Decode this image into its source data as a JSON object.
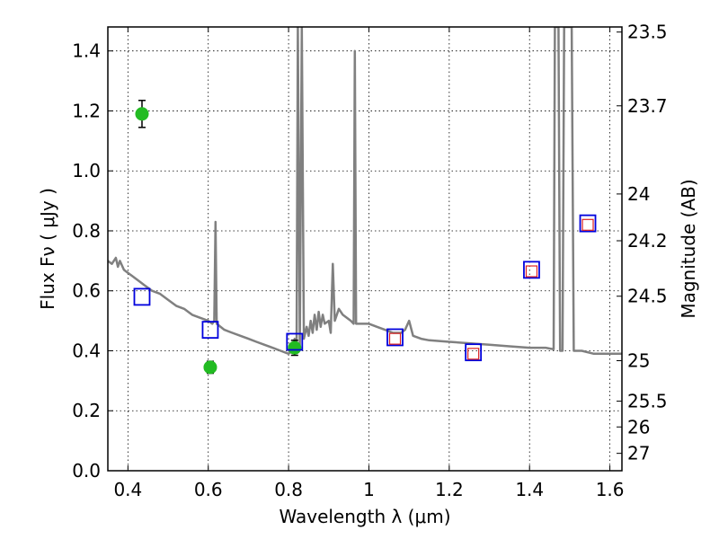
{
  "chart_data": {
    "type": "scatter",
    "xlabel": "Wavelength  λ (μm)",
    "ylabel": "Flux  Fν  ( μJy )",
    "ylabel_right": "Magnitude (AB)",
    "xlim": [
      0.35,
      1.63
    ],
    "ylim": [
      0.0,
      1.48
    ],
    "grid": true,
    "x_ticks": [
      0.4,
      0.6,
      0.8,
      1.0,
      1.2,
      1.4,
      1.6
    ],
    "x_tick_labels": [
      "0.4",
      "0.6",
      "0.8",
      "1",
      "1.2",
      "1.4",
      "1.6"
    ],
    "y_ticks": [
      0.0,
      0.2,
      0.4,
      0.6,
      0.8,
      1.0,
      1.2,
      1.4
    ],
    "y_tick_labels": [
      "0.0",
      "0.2",
      "0.4",
      "0.6",
      "0.8",
      "1.0",
      "1.2",
      "1.4"
    ],
    "right_ticks": [
      {
        "label": "23.5",
        "flux": 1.463
      },
      {
        "label": "23.7",
        "flux": 1.217
      },
      {
        "label": "24",
        "flux": 0.923
      },
      {
        "label": "24.2",
        "flux": 0.767
      },
      {
        "label": "24.5",
        "flux": 0.582
      },
      {
        "label": "25",
        "flux": 0.367
      },
      {
        "label": "25.5",
        "flux": 0.232
      },
      {
        "label": "26",
        "flux": 0.146
      },
      {
        "label": "27",
        "flux": 0.058
      }
    ],
    "series": [
      {
        "kind": "line",
        "color": "#808080",
        "points": [
          [
            0.35,
            0.7
          ],
          [
            0.36,
            0.69
          ],
          [
            0.37,
            0.71
          ],
          [
            0.375,
            0.68
          ],
          [
            0.38,
            0.7
          ],
          [
            0.39,
            0.67
          ],
          [
            0.4,
            0.66
          ],
          [
            0.41,
            0.65
          ],
          [
            0.42,
            0.64
          ],
          [
            0.43,
            0.63
          ],
          [
            0.44,
            0.62
          ],
          [
            0.45,
            0.61
          ],
          [
            0.46,
            0.6
          ],
          [
            0.48,
            0.59
          ],
          [
            0.5,
            0.57
          ],
          [
            0.52,
            0.55
          ],
          [
            0.54,
            0.54
          ],
          [
            0.55,
            0.53
          ],
          [
            0.56,
            0.52
          ],
          [
            0.58,
            0.51
          ],
          [
            0.6,
            0.5
          ],
          [
            0.61,
            0.49
          ],
          [
            0.615,
            0.5
          ],
          [
            0.618,
            0.83
          ],
          [
            0.621,
            0.49
          ],
          [
            0.64,
            0.47
          ],
          [
            0.66,
            0.46
          ],
          [
            0.68,
            0.45
          ],
          [
            0.7,
            0.44
          ],
          [
            0.72,
            0.43
          ],
          [
            0.74,
            0.42
          ],
          [
            0.76,
            0.41
          ],
          [
            0.78,
            0.4
          ],
          [
            0.8,
            0.39
          ],
          [
            0.81,
            0.4
          ],
          [
            0.815,
            0.44
          ],
          [
            0.82,
            0.41
          ],
          [
            0.823,
            1.48
          ],
          [
            0.828,
            0.42
          ],
          [
            0.833,
            1.48
          ],
          [
            0.838,
            0.44
          ],
          [
            0.845,
            0.48
          ],
          [
            0.85,
            0.45
          ],
          [
            0.855,
            0.5
          ],
          [
            0.86,
            0.46
          ],
          [
            0.865,
            0.52
          ],
          [
            0.87,
            0.47
          ],
          [
            0.875,
            0.53
          ],
          [
            0.88,
            0.48
          ],
          [
            0.885,
            0.52
          ],
          [
            0.89,
            0.49
          ],
          [
            0.9,
            0.5
          ],
          [
            0.905,
            0.46
          ],
          [
            0.91,
            0.69
          ],
          [
            0.915,
            0.5
          ],
          [
            0.925,
            0.54
          ],
          [
            0.935,
            0.52
          ],
          [
            0.945,
            0.51
          ],
          [
            0.955,
            0.5
          ],
          [
            0.962,
            0.49
          ],
          [
            0.965,
            1.4
          ],
          [
            0.968,
            0.49
          ],
          [
            0.98,
            0.49
          ],
          [
            1.0,
            0.49
          ],
          [
            1.02,
            0.48
          ],
          [
            1.04,
            0.47
          ],
          [
            1.06,
            0.46
          ],
          [
            1.08,
            0.46
          ],
          [
            1.09,
            0.47
          ],
          [
            1.1,
            0.5
          ],
          [
            1.11,
            0.45
          ],
          [
            1.13,
            0.44
          ],
          [
            1.15,
            0.435
          ],
          [
            1.2,
            0.43
          ],
          [
            1.25,
            0.425
          ],
          [
            1.3,
            0.42
          ],
          [
            1.35,
            0.415
          ],
          [
            1.4,
            0.41
          ],
          [
            1.44,
            0.41
          ],
          [
            1.46,
            0.405
          ],
          [
            1.463,
            1.48
          ],
          [
            1.472,
            1.48
          ],
          [
            1.476,
            0.4
          ],
          [
            1.482,
            0.4
          ],
          [
            1.486,
            1.48
          ],
          [
            1.505,
            1.48
          ],
          [
            1.51,
            0.4
          ],
          [
            1.53,
            0.4
          ],
          [
            1.56,
            0.39
          ],
          [
            1.6,
            0.39
          ],
          [
            1.63,
            0.39
          ]
        ]
      },
      {
        "kind": "points",
        "marker": "circle",
        "color": "#22bb22",
        "points": [
          {
            "x": 0.435,
            "y": 1.19,
            "err": 0.045
          },
          {
            "x": 0.605,
            "y": 0.345,
            "err": 0.02
          },
          {
            "x": 0.815,
            "y": 0.41,
            "err": 0.025
          }
        ]
      },
      {
        "kind": "points",
        "marker": "square-large",
        "color": "#0000dd",
        "points": [
          {
            "x": 0.435,
            "y": 0.58
          },
          {
            "x": 0.605,
            "y": 0.47
          },
          {
            "x": 0.815,
            "y": 0.43
          },
          {
            "x": 1.065,
            "y": 0.445
          },
          {
            "x": 1.26,
            "y": 0.395
          },
          {
            "x": 1.405,
            "y": 0.67
          },
          {
            "x": 1.545,
            "y": 0.825
          }
        ]
      },
      {
        "kind": "points",
        "marker": "square-small",
        "color": "#dd2222",
        "points": [
          {
            "x": 1.065,
            "y": 0.44
          },
          {
            "x": 1.26,
            "y": 0.39
          },
          {
            "x": 1.405,
            "y": 0.665
          },
          {
            "x": 1.545,
            "y": 0.82
          }
        ]
      }
    ]
  }
}
